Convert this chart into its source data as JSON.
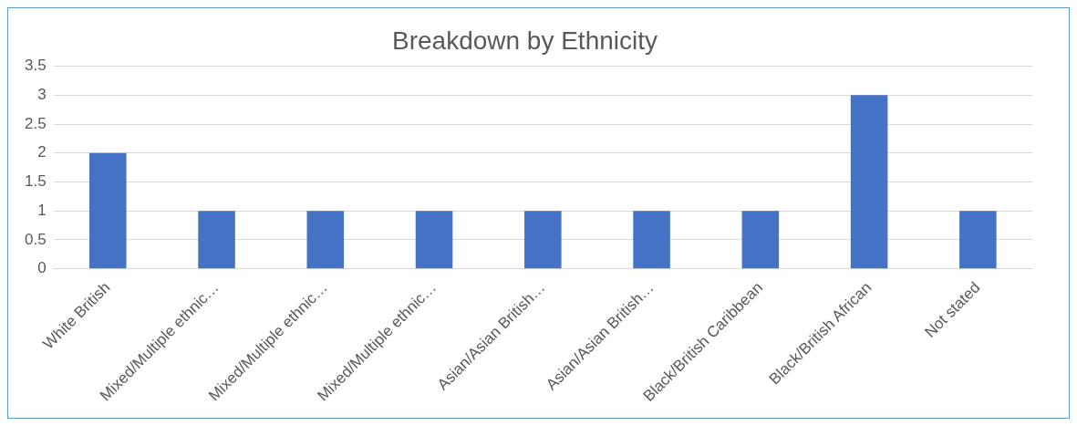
{
  "chart_data": {
    "type": "bar",
    "title": "Breakdown by Ethnicity",
    "categories": [
      "White British",
      "Mixed/Multiple ethnic…",
      "Mixed/Multiple ethnic…",
      "Mixed/Multiple ethnic…",
      "Asian/Asian British…",
      "Asian/Asian British…",
      "Black/British Caribbean",
      "Black/British African",
      "Not stated"
    ],
    "values": [
      2,
      1,
      1,
      1,
      1,
      1,
      1,
      3,
      1
    ],
    "color": "#4472c4",
    "ylim": [
      0,
      3.5
    ],
    "yticks": [
      0,
      0.5,
      1,
      1.5,
      2,
      2.5,
      3,
      3.5
    ],
    "grid": "y",
    "legend": false
  }
}
